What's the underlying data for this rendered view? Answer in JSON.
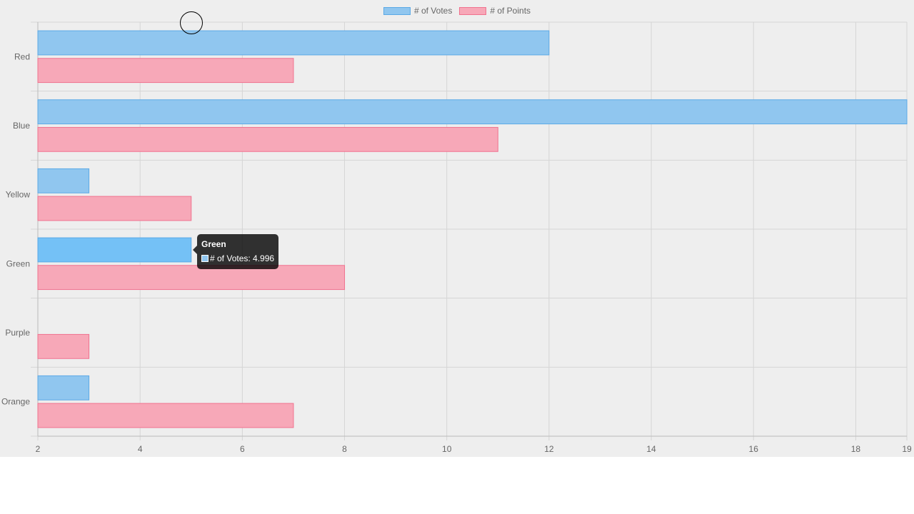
{
  "chart_data": {
    "type": "bar",
    "orientation": "horizontal",
    "categories": [
      "Red",
      "Blue",
      "Yellow",
      "Green",
      "Purple",
      "Orange"
    ],
    "series": [
      {
        "name": "# of Votes",
        "values": [
          12,
          19,
          3,
          5,
          2,
          3
        ],
        "fill": "#90c6ef",
        "border": "#5ba9e6"
      },
      {
        "name": "# of Points",
        "values": [
          7,
          11,
          5,
          8,
          3,
          7
        ],
        "fill": "#f7a8b8",
        "border": "#f0728f"
      }
    ],
    "xlim": [
      2,
      19
    ],
    "x_ticks": [
      2,
      4,
      6,
      8,
      10,
      12,
      14,
      16,
      18,
      19
    ],
    "grid": true,
    "legend_position": "top",
    "highlight_fill": "#74c1f6"
  },
  "tooltip": {
    "title": "Green",
    "text": "# of Votes: 4.996"
  }
}
